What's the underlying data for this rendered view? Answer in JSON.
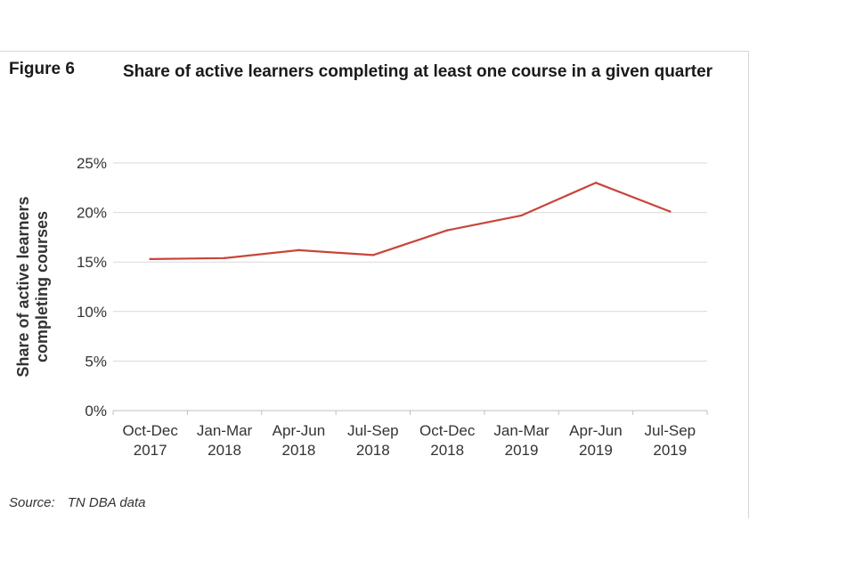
{
  "figure": {
    "label": "Figure 6",
    "title": "Share of active learners completing at least one course in a given quarter"
  },
  "source": {
    "label": "Source:",
    "value": "TN DBA data"
  },
  "chart_data": {
    "type": "line",
    "title": "Share of active learners completing at least one course in a given quarter",
    "ylabel": "Share of active learners completing courses",
    "ylabel_lines": [
      "Share of active learners",
      "completing courses"
    ],
    "xlabel": "",
    "ylim": [
      0,
      25
    ],
    "yticks": [
      0,
      5,
      10,
      15,
      20,
      25
    ],
    "ytick_labels": [
      "0%",
      "5%",
      "10%",
      "15%",
      "20%",
      "25%"
    ],
    "grid": true,
    "categories": [
      [
        "Oct-Dec",
        "2017"
      ],
      [
        "Jan-Mar",
        "2018"
      ],
      [
        "Apr-Jun",
        "2018"
      ],
      [
        "Jul-Sep",
        "2018"
      ],
      [
        "Oct-Dec",
        "2018"
      ],
      [
        "Jan-Mar",
        "2019"
      ],
      [
        "Apr-Jun",
        "2019"
      ],
      [
        "Jul-Sep",
        "2019"
      ]
    ],
    "series": [
      {
        "name": "Share of active learners completing at least one course",
        "color": "#c8453a",
        "values": [
          15.3,
          15.4,
          16.2,
          15.7,
          18.2,
          19.7,
          23.0,
          20.1
        ]
      }
    ]
  }
}
